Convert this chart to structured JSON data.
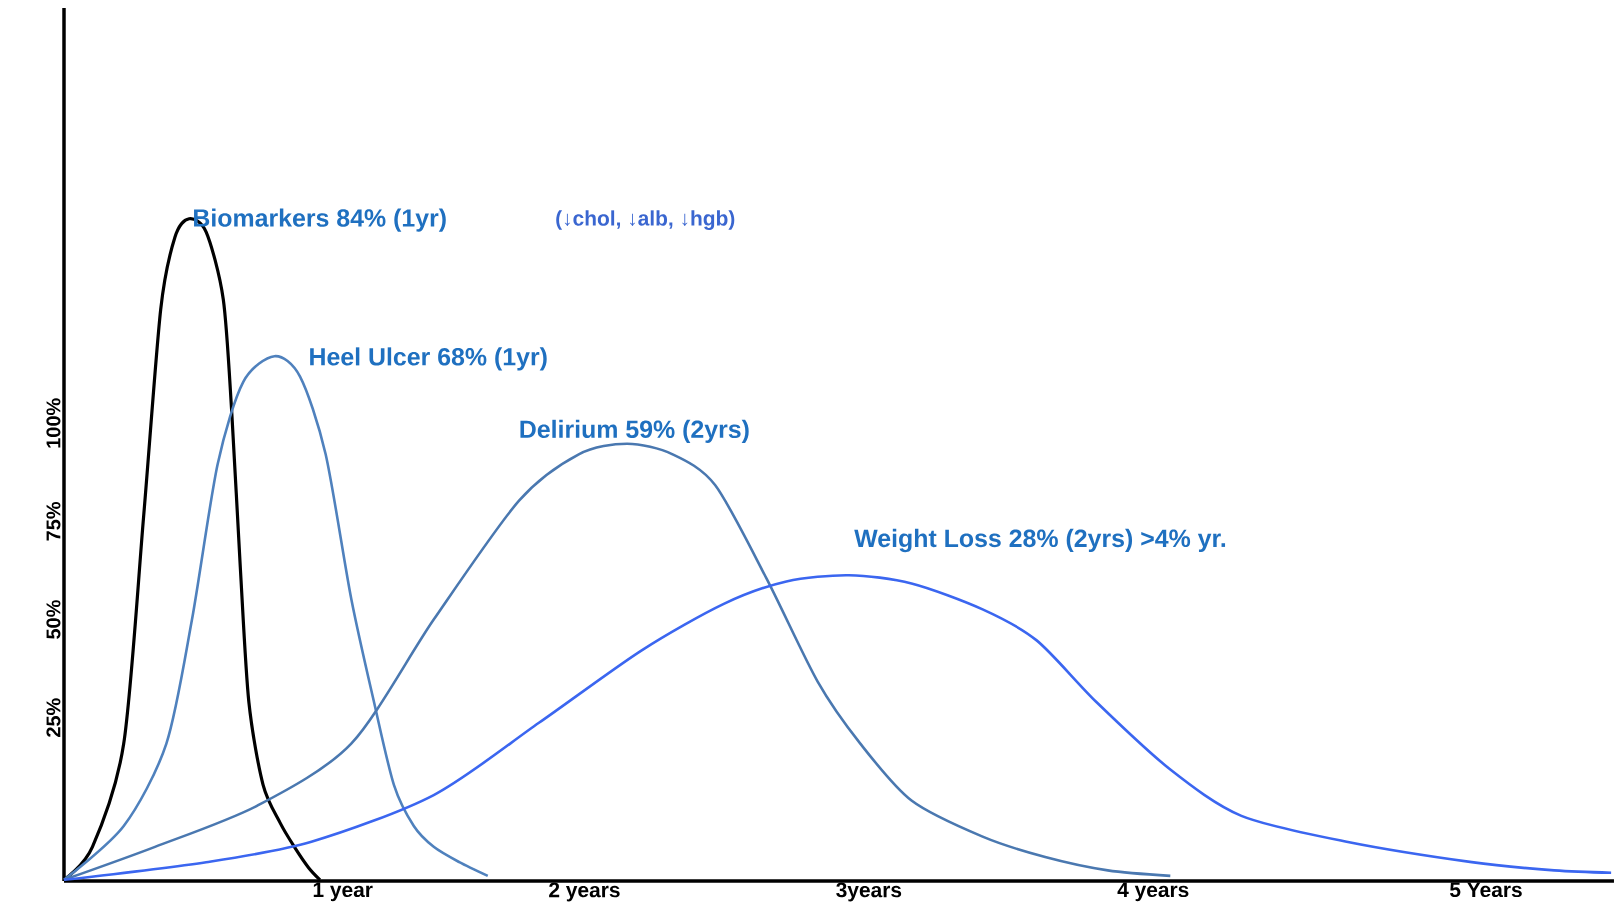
{
  "chart_data": {
    "type": "line",
    "xlim": [
      0,
      5.45
    ],
    "ylim": [
      -16.6,
      205.8
    ],
    "xticks": [
      {
        "value": 0.98,
        "label": "1 year"
      },
      {
        "value": 1.83,
        "label": "2 years"
      },
      {
        "value": 2.83,
        "label": "3years"
      },
      {
        "value": 3.83,
        "label": "4 years"
      },
      {
        "value": 5.0,
        "label": "5 Years"
      }
    ],
    "yticks": [
      {
        "value": 25,
        "label": "25%"
      },
      {
        "value": 50,
        "label": "50%"
      },
      {
        "value": 75,
        "label": "75%"
      },
      {
        "value": 100,
        "label": "100%"
      }
    ],
    "series": [
      {
        "color": "#000000",
        "x": [
          0,
          0.1,
          0.21,
          0.28,
          0.34,
          0.39,
          0.44,
          0.5,
          0.56,
          0.59,
          0.62,
          0.65,
          0.7,
          0.76,
          0.81,
          0.86,
          0.9
        ],
        "values": [
          -16.3,
          -7.9,
          18.4,
          76.3,
          129.0,
          147.4,
          152.1,
          148.7,
          131.6,
          102.6,
          63.2,
          29.0,
          7.9,
          -1.8,
          -7.9,
          -13.2,
          -16.3
        ]
      },
      {
        "color": "#4f81bd",
        "x": [
          0,
          0.21,
          0.36,
          0.45,
          0.54,
          0.63,
          0.74,
          0.83,
          0.92,
          1.01,
          1.09,
          1.16,
          1.23,
          1.3,
          1.39,
          1.49
        ],
        "values": [
          -16.3,
          -2.6,
          18.4,
          50.0,
          89.5,
          110.5,
          117.1,
          111.9,
          92.1,
          55.3,
          29.0,
          7.9,
          -2.6,
          -7.9,
          -11.8,
          -15.3
        ]
      },
      {
        "color": "#4a78b0",
        "x": [
          0,
          0.32,
          0.68,
          1.01,
          1.3,
          1.6,
          1.81,
          1.98,
          2.14,
          2.29,
          2.47,
          2.65,
          2.8,
          2.98,
          3.23,
          3.45,
          3.67,
          3.89
        ],
        "values": [
          -16.3,
          -7.9,
          2.6,
          18.4,
          50.0,
          80.3,
          92.1,
          94.8,
          92.1,
          84.2,
          60.5,
          34.2,
          18.4,
          3.9,
          -5.3,
          -10.5,
          -13.9,
          -15.3
        ]
      },
      {
        "color": "#3b66f0",
        "x": [
          0,
          0.5,
          0.87,
          1.3,
          1.67,
          2.03,
          2.32,
          2.54,
          2.76,
          2.98,
          3.23,
          3.42,
          3.63,
          3.89,
          4.14,
          4.51,
          4.95,
          5.24,
          5.44
        ],
        "values": [
          -16.3,
          -11.8,
          -6.6,
          5.3,
          23.7,
          42.1,
          54.0,
          59.7,
          61.3,
          59.2,
          52.6,
          44.7,
          29.0,
          11.8,
          0,
          -6.6,
          -11.8,
          -13.9,
          -14.5
        ]
      }
    ],
    "annotations": [
      "Biomarkers 84% (1yr)",
      "(↓chol, ↓alb, ↓hgb)",
      "Heel Ulcer 68% (1yr)",
      "Delirium 59% (2yrs)",
      "Weight Loss 28% (2yrs) >4% yr."
    ]
  }
}
